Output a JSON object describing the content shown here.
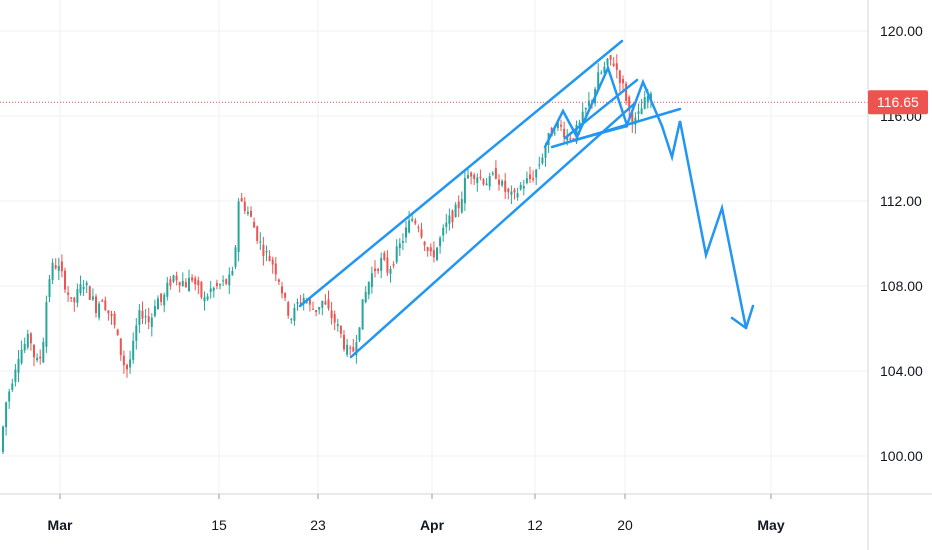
{
  "chart_data": {
    "type": "candlestick",
    "x_ticks": [
      {
        "label": "Mar",
        "bold": true
      },
      {
        "label": "15",
        "bold": false
      },
      {
        "label": "23",
        "bold": false
      },
      {
        "label": "Apr",
        "bold": true
      },
      {
        "label": "12",
        "bold": false
      },
      {
        "label": "20",
        "bold": false
      },
      {
        "label": "May",
        "bold": true
      }
    ],
    "y_ticks": [
      "120.00",
      "116.00",
      "112.00",
      "108.00",
      "104.00",
      "100.00"
    ],
    "ylim": [
      97.5,
      121.2
    ],
    "last_price": 116.65,
    "last_price_label": "116.65",
    "colors": {
      "up": "#26a69a",
      "down": "#ef5350",
      "drawing": "#2196f3",
      "price_tag": "#ef5350",
      "grid": "#eef0f3"
    },
    "series_hint": "daily candles, Feb 26 - Apr 22",
    "close_path": [
      [
        0,
        100.2
      ],
      [
        6,
        102.5
      ],
      [
        12,
        103.6
      ],
      [
        18,
        104.8
      ],
      [
        24,
        105.2
      ],
      [
        30,
        105.6
      ],
      [
        36,
        104.3
      ],
      [
        42,
        104.8
      ],
      [
        48,
        108.2
      ],
      [
        54,
        109.1
      ],
      [
        60,
        108.7
      ],
      [
        66,
        108.0
      ],
      [
        72,
        107.0
      ],
      [
        78,
        107.7
      ],
      [
        84,
        108.2
      ],
      [
        90,
        107.6
      ],
      [
        96,
        107.0
      ],
      [
        102,
        107.5
      ],
      [
        108,
        106.8
      ],
      [
        114,
        106.2
      ],
      [
        120,
        105.0
      ],
      [
        126,
        104.0
      ],
      [
        132,
        104.8
      ],
      [
        138,
        106.5
      ],
      [
        144,
        106.8
      ],
      [
        150,
        106.2
      ],
      [
        156,
        107.5
      ],
      [
        162,
        107.2
      ],
      [
        168,
        108.0
      ],
      [
        174,
        108.5
      ],
      [
        180,
        108.3
      ],
      [
        186,
        108.1
      ],
      [
        192,
        108.4
      ],
      [
        198,
        107.8
      ],
      [
        204,
        107.3
      ],
      [
        210,
        107.8
      ],
      [
        216,
        107.9
      ],
      [
        222,
        108.1
      ],
      [
        228,
        108.2
      ],
      [
        234,
        108.6
      ],
      [
        238,
        112.1
      ],
      [
        244,
        111.8
      ],
      [
        250,
        111.3
      ],
      [
        256,
        110.5
      ],
      [
        262,
        109.8
      ],
      [
        268,
        109.4
      ],
      [
        274,
        109.0
      ],
      [
        280,
        108.2
      ],
      [
        286,
        107.0
      ],
      [
        292,
        106.5
      ],
      [
        298,
        107.2
      ],
      [
        304,
        107.5
      ],
      [
        310,
        107.0
      ],
      [
        316,
        106.9
      ],
      [
        322,
        107.3
      ],
      [
        328,
        106.8
      ],
      [
        334,
        106.4
      ],
      [
        340,
        105.8
      ],
      [
        346,
        105.0
      ],
      [
        352,
        104.7
      ],
      [
        358,
        106.0
      ],
      [
        364,
        107.4
      ],
      [
        370,
        108.4
      ],
      [
        376,
        108.9
      ],
      [
        382,
        109.2
      ],
      [
        388,
        108.7
      ],
      [
        394,
        109.3
      ],
      [
        400,
        109.9
      ],
      [
        406,
        110.6
      ],
      [
        412,
        111.2
      ],
      [
        418,
        111.0
      ],
      [
        424,
        110.2
      ],
      [
        430,
        109.3
      ],
      [
        436,
        109.7
      ],
      [
        442,
        110.4
      ],
      [
        448,
        111.0
      ],
      [
        454,
        111.4
      ],
      [
        460,
        111.9
      ],
      [
        466,
        113.1
      ],
      [
        472,
        113.4
      ],
      [
        478,
        113.2
      ],
      [
        484,
        113.0
      ],
      [
        490,
        112.9
      ],
      [
        496,
        113.3
      ],
      [
        502,
        112.7
      ],
      [
        508,
        112.3
      ],
      [
        514,
        112.1
      ],
      [
        520,
        112.7
      ],
      [
        526,
        112.9
      ],
      [
        532,
        113.1
      ],
      [
        538,
        113.6
      ],
      [
        544,
        114.4
      ],
      [
        550,
        115.1
      ],
      [
        556,
        115.6
      ],
      [
        562,
        115.4
      ],
      [
        568,
        115.0
      ],
      [
        574,
        115.1
      ],
      [
        580,
        115.6
      ],
      [
        586,
        116.3
      ],
      [
        592,
        116.9
      ],
      [
        598,
        117.8
      ],
      [
        604,
        118.2
      ],
      [
        610,
        118.6
      ],
      [
        614,
        118.5
      ],
      [
        620,
        117.8
      ],
      [
        626,
        116.9
      ],
      [
        630,
        116.0
      ],
      [
        636,
        115.7
      ],
      [
        642,
        116.4
      ],
      [
        648,
        116.9
      ],
      [
        654,
        116.65
      ]
    ],
    "drawings": [
      {
        "name": "channel-upper-line",
        "points": [
          [
            300,
            306
          ],
          [
            622,
            41
          ]
        ]
      },
      {
        "name": "channel-lower-line",
        "points": [
          [
            351,
            357
          ],
          [
            634,
            104
          ]
        ]
      },
      {
        "name": "wedge-support-line",
        "points": [
          [
            552,
            147
          ],
          [
            680,
            109
          ]
        ]
      },
      {
        "name": "neckline",
        "points": [
          [
            575,
            140
          ],
          [
            627,
            126
          ]
        ]
      },
      {
        "name": "zigzag-pattern",
        "points": [
          [
            545,
            147
          ],
          [
            563,
            111
          ],
          [
            577,
            137
          ],
          [
            608,
            68
          ],
          [
            627,
            125
          ],
          [
            643,
            82
          ],
          [
            662,
            126
          ]
        ]
      },
      {
        "name": "small-flag",
        "points": [
          [
            565,
            138
          ],
          [
            637,
            80
          ]
        ]
      },
      {
        "name": "projection-path",
        "points": [
          [
            662,
            126
          ],
          [
            672,
            157
          ],
          [
            680,
            121
          ],
          [
            706,
            255
          ],
          [
            722,
            208
          ],
          [
            746,
            328
          ]
        ]
      }
    ],
    "arrowhead": {
      "name": "projection-arrowhead",
      "points": [
        [
          732,
          318
        ],
        [
          746,
          328
        ],
        [
          753,
          306
        ]
      ]
    }
  }
}
